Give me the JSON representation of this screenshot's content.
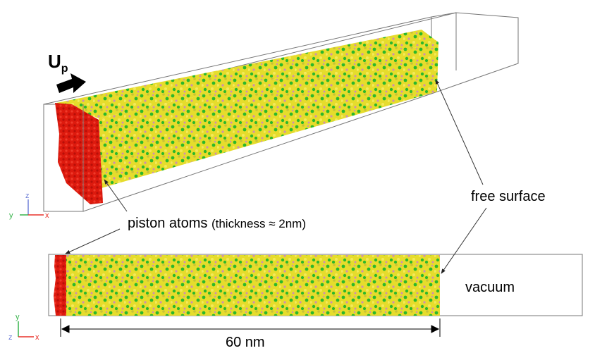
{
  "labels": {
    "velocity_symbol": "U",
    "velocity_subscript": "p",
    "piston_main": "piston atoms",
    "piston_paren": "(thickness ≈ 2nm)",
    "free_surface": "free surface",
    "vacuum": "vacuum",
    "length": "60 nm"
  },
  "axes_top": {
    "z": "z",
    "y": "y",
    "x": "x"
  },
  "axes_bottom": {
    "y": "y",
    "z": "z",
    "x": "x"
  },
  "colors": {
    "piston": "#dd1a0e",
    "yellow": "#ece12a",
    "green": "#2bb82b",
    "pink": "#cf8fb0",
    "axis_x": "#e8322a",
    "axis_y": "#36b34a",
    "axis_z": "#7080d8"
  }
}
